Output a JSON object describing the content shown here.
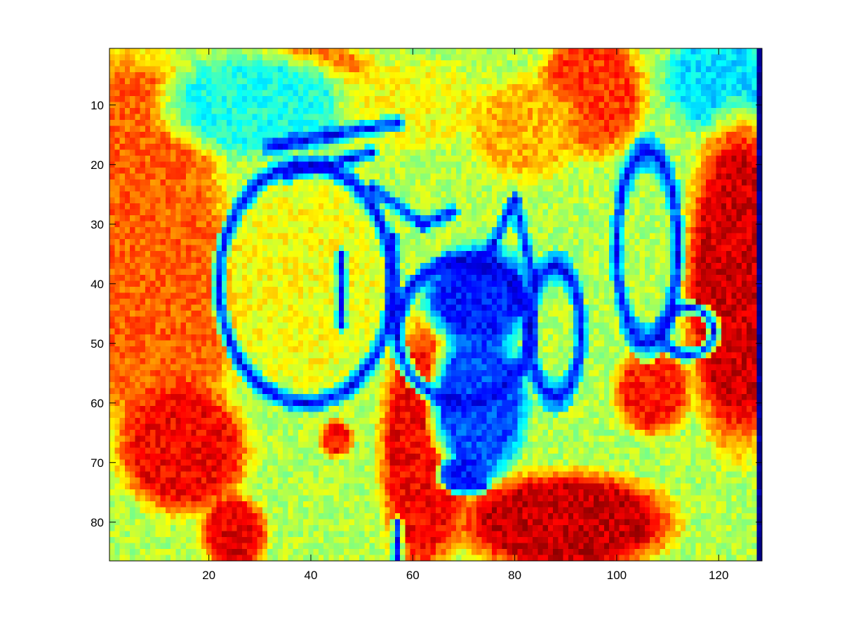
{
  "chart_data": {
    "type": "heatmap",
    "colormap": "jet",
    "title": "",
    "xlabel": "",
    "ylabel": "",
    "image_size": {
      "columns": 128,
      "rows": 86
    },
    "xlim": [
      0.5,
      128.5
    ],
    "ylim": [
      0.5,
      86.5
    ],
    "y_direction": "reverse",
    "x_ticks": [
      20,
      40,
      60,
      80,
      100,
      120
    ],
    "y_ticks": [
      10,
      20,
      30,
      40,
      50,
      60,
      70,
      80
    ],
    "x_tick_labels": [
      "20",
      "40",
      "60",
      "80",
      "100",
      "120"
    ],
    "y_tick_labels": [
      "10",
      "20",
      "30",
      "40",
      "50",
      "60",
      "70",
      "80"
    ],
    "grid": false,
    "colorbar": false,
    "background_value": 0.55,
    "regions": [
      {
        "shape": "ellipse",
        "cx": 4,
        "cy": 18,
        "rx": 16,
        "ry": 16,
        "value": 0.78
      },
      {
        "shape": "ellipse",
        "cx": 10,
        "cy": 42,
        "rx": 16,
        "ry": 24,
        "value": 0.78
      },
      {
        "shape": "ellipse",
        "cx": 15,
        "cy": 68,
        "rx": 12,
        "ry": 10,
        "value": 0.88
      },
      {
        "shape": "ellipse",
        "cx": 40,
        "cy": 4,
        "rx": 12,
        "ry": 4,
        "value": 0.75
      },
      {
        "shape": "ellipse",
        "cx": 30,
        "cy": 10,
        "rx": 18,
        "ry": 8,
        "value": 0.4
      },
      {
        "shape": "ellipse",
        "cx": 60,
        "cy": 10,
        "rx": 14,
        "ry": 7,
        "value": 0.62
      },
      {
        "shape": "ellipse",
        "cx": 95,
        "cy": 8,
        "rx": 10,
        "ry": 10,
        "value": 0.82
      },
      {
        "shape": "ellipse",
        "cx": 82,
        "cy": 14,
        "rx": 10,
        "ry": 8,
        "value": 0.7
      },
      {
        "shape": "ellipse",
        "cx": 120,
        "cy": 6,
        "rx": 10,
        "ry": 8,
        "value": 0.35
      },
      {
        "shape": "ellipse",
        "cx": 124,
        "cy": 40,
        "rx": 10,
        "ry": 26,
        "value": 0.92
      },
      {
        "shape": "ellipse",
        "cx": 39,
        "cy": 40,
        "rx": 15,
        "ry": 17,
        "value": 0.62
      },
      {
        "shape": "ellipse",
        "cx": 62,
        "cy": 68,
        "rx": 8,
        "ry": 20,
        "value": 0.88
      },
      {
        "shape": "ellipse",
        "cx": 90,
        "cy": 80,
        "rx": 20,
        "ry": 8,
        "value": 0.93
      },
      {
        "shape": "ellipse",
        "cx": 25,
        "cy": 82,
        "rx": 6,
        "ry": 6,
        "value": 0.9
      },
      {
        "shape": "ellipse",
        "cx": 107,
        "cy": 58,
        "rx": 7,
        "ry": 7,
        "value": 0.85
      },
      {
        "shape": "ellipse",
        "cx": 45,
        "cy": 66,
        "rx": 3,
        "ry": 3,
        "value": 0.85
      },
      {
        "shape": "ellipse",
        "cx": 73,
        "cy": 60,
        "rx": 9,
        "ry": 12,
        "value": 0.2
      },
      {
        "shape": "ellipse",
        "cx": 73,
        "cy": 42,
        "rx": 10,
        "ry": 8,
        "value": 0.15
      },
      {
        "shape": "ellipse",
        "cx": 70,
        "cy": 72,
        "rx": 5,
        "ry": 3,
        "value": 0.15
      },
      {
        "shape": "ring",
        "cx": 39,
        "cy": 40,
        "rx": 17,
        "ry": 20,
        "width": 1.5,
        "value": 0.1
      },
      {
        "shape": "ring",
        "cx": 106,
        "cy": 34,
        "rx": 6,
        "ry": 16,
        "width": 1.3,
        "value": 0.12
      },
      {
        "shape": "ring",
        "cx": 114,
        "cy": 48,
        "rx": 5,
        "ry": 4,
        "width": 1.2,
        "value": 0.12
      },
      {
        "shape": "ring",
        "cx": 88,
        "cy": 48,
        "rx": 5,
        "ry": 11,
        "width": 1.4,
        "value": 0.12
      },
      {
        "shape": "ring",
        "cx": 70,
        "cy": 48,
        "rx": 13,
        "ry": 12,
        "width": 1.6,
        "value": 0.1
      },
      {
        "shape": "segment",
        "x1": 32,
        "y1": 17,
        "x2": 57,
        "y2": 13,
        "width": 1.6,
        "value": 0.1
      },
      {
        "shape": "segment",
        "x1": 35,
        "y1": 22,
        "x2": 52,
        "y2": 18,
        "width": 1.4,
        "value": 0.1
      },
      {
        "shape": "segment",
        "x1": 52,
        "y1": 24,
        "x2": 62,
        "y2": 30,
        "width": 1.4,
        "value": 0.12
      },
      {
        "shape": "segment",
        "x1": 62,
        "y1": 30,
        "x2": 68,
        "y2": 28,
        "width": 1.4,
        "value": 0.12
      },
      {
        "shape": "segment",
        "x1": 80,
        "y1": 26,
        "x2": 72,
        "y2": 40,
        "width": 1.4,
        "value": 0.12
      },
      {
        "shape": "segment",
        "x1": 80,
        "y1": 26,
        "x2": 84,
        "y2": 40,
        "width": 1.4,
        "value": 0.12
      },
      {
        "shape": "segment",
        "x1": 56,
        "y1": 32,
        "x2": 56,
        "y2": 46,
        "width": 1.4,
        "value": 0.12
      },
      {
        "shape": "segment",
        "x1": 46,
        "y1": 35,
        "x2": 46,
        "y2": 47,
        "width": 1.2,
        "value": 0.15
      },
      {
        "shape": "segment",
        "x1": 68,
        "y1": 74,
        "x2": 74,
        "y2": 74,
        "width": 1.2,
        "value": 0.12
      },
      {
        "shape": "segment",
        "x1": 57,
        "y1": 80,
        "x2": 57,
        "y2": 86,
        "width": 1.2,
        "value": 0.15
      },
      {
        "shape": "segment",
        "x1": 128,
        "y1": 0,
        "x2": 128,
        "y2": 87,
        "width": 0.9,
        "value": 0.0
      }
    ]
  }
}
